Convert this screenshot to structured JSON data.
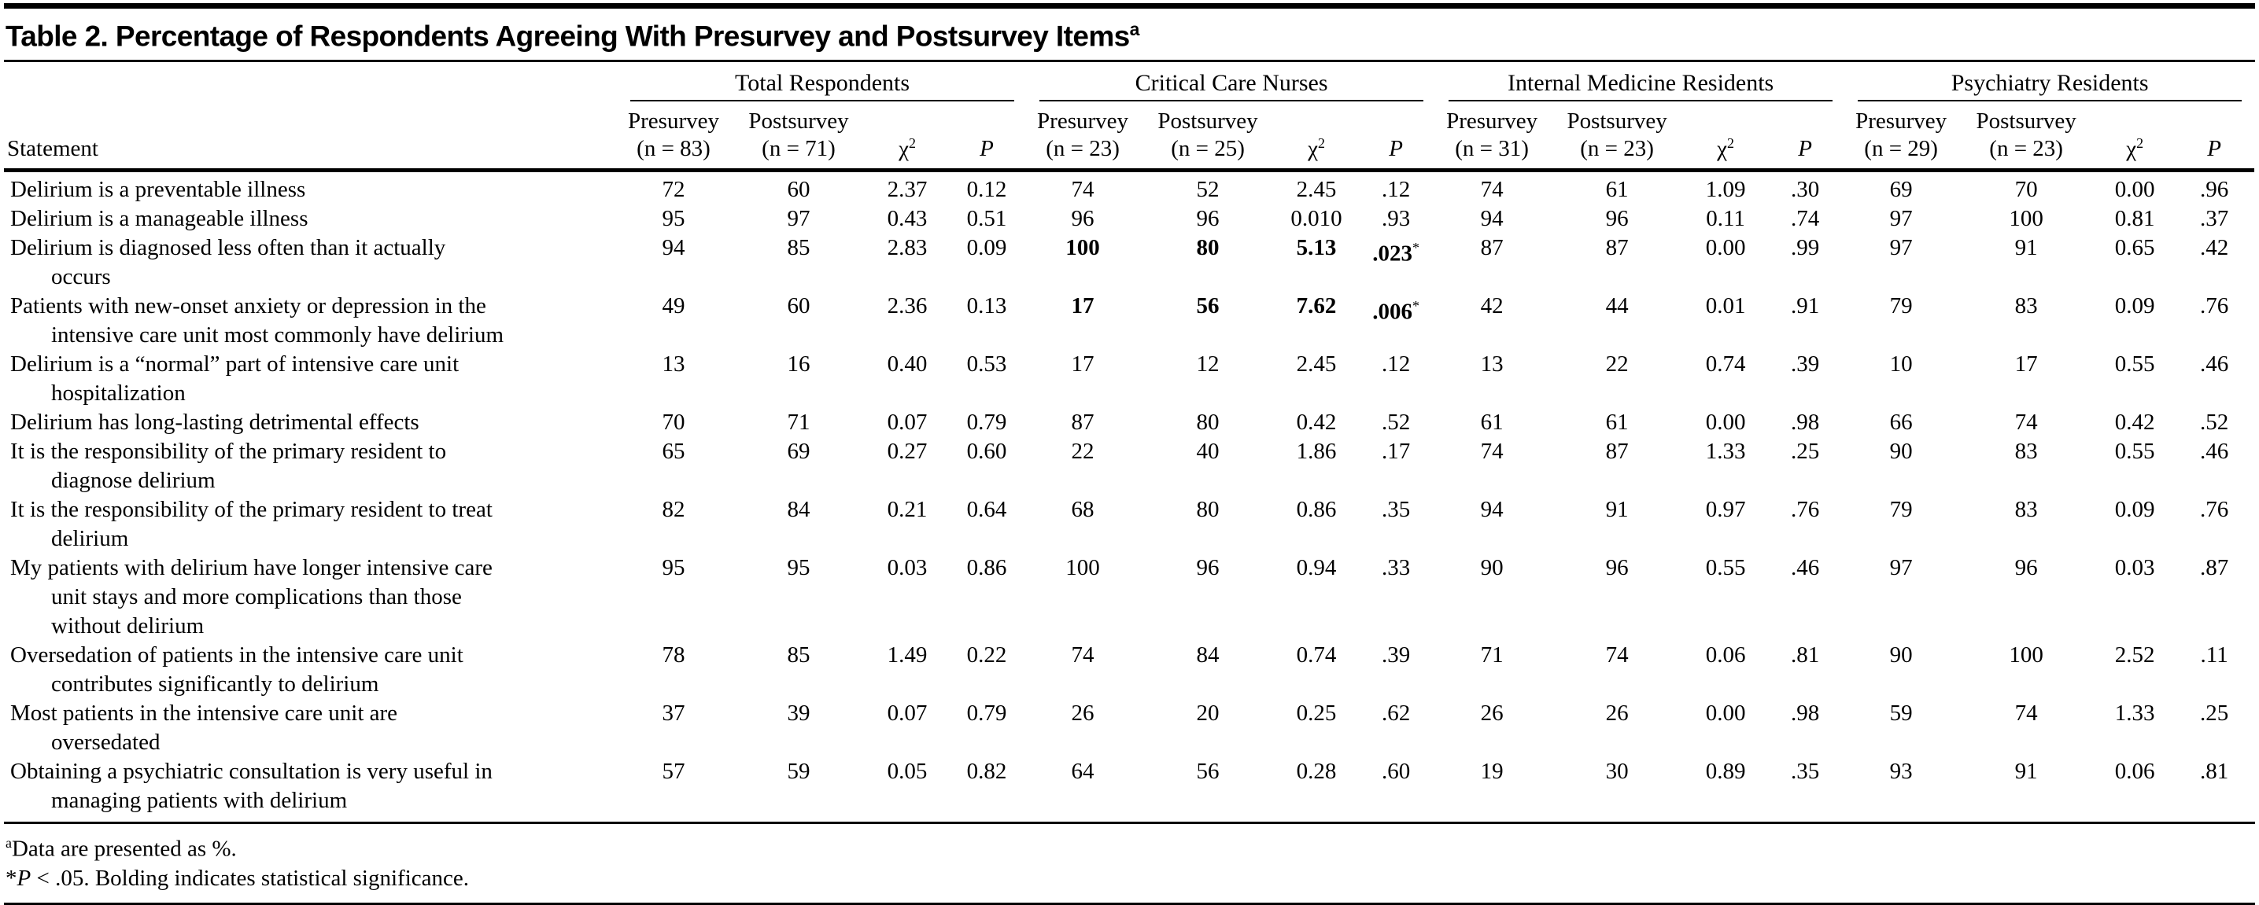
{
  "title": {
    "text": "Table 2. Percentage of Respondents Agreeing With Presurvey and Postsurvey Items",
    "superscript": "a"
  },
  "header": {
    "statement": "Statement",
    "chi": "χ",
    "chi_sup": "2",
    "p": "P",
    "groups": [
      {
        "label": "Total Respondents",
        "presurvey": "Presurvey",
        "presurvey_n": "(n = 83)",
        "postsurvey": "Postsurvey",
        "postsurvey_n": "(n = 71)"
      },
      {
        "label": "Critical Care Nurses",
        "presurvey": "Presurvey",
        "presurvey_n": "(n = 23)",
        "postsurvey": "Postsurvey",
        "postsurvey_n": "(n = 25)"
      },
      {
        "label": "Internal Medicine Residents",
        "presurvey": "Presurvey",
        "presurvey_n": "(n = 31)",
        "postsurvey": "Postsurvey",
        "postsurvey_n": "(n = 23)"
      },
      {
        "label": "Psychiatry Residents",
        "presurvey": "Presurvey",
        "presurvey_n": "(n = 29)",
        "postsurvey": "Postsurvey",
        "postsurvey_n": "(n = 23)"
      }
    ]
  },
  "rows": [
    {
      "statement": "Delirium is a preventable illness",
      "cells": [
        "72",
        "60",
        "2.37",
        "0.12",
        "74",
        "52",
        "2.45",
        ".12",
        "74",
        "61",
        "1.09",
        ".30",
        "69",
        "70",
        "0.00",
        ".96"
      ],
      "bold_cells": []
    },
    {
      "statement": "Delirium is a manageable illness",
      "cells": [
        "95",
        "97",
        "0.43",
        "0.51",
        "96",
        "96",
        "0.010",
        ".93",
        "94",
        "96",
        "0.11",
        ".74",
        "97",
        "100",
        "0.81",
        ".37"
      ],
      "bold_cells": []
    },
    {
      "statement": "Delirium is diagnosed less often than it actually\noccurs",
      "cells": [
        "94",
        "85",
        "2.83",
        "0.09",
        "100",
        "80",
        "5.13",
        ".023*",
        "87",
        "87",
        "0.00",
        ".99",
        "97",
        "91",
        "0.65",
        ".42"
      ],
      "bold_cells": [
        4,
        5,
        6,
        7
      ]
    },
    {
      "statement": "Patients with new-onset anxiety or depression in the\nintensive care unit most commonly have delirium",
      "cells": [
        "49",
        "60",
        "2.36",
        "0.13",
        "17",
        "56",
        "7.62",
        ".006*",
        "42",
        "44",
        "0.01",
        ".91",
        "79",
        "83",
        "0.09",
        ".76"
      ],
      "bold_cells": [
        4,
        5,
        6,
        7
      ]
    },
    {
      "statement": "Delirium is a “normal” part of intensive care unit\nhospitalization",
      "cells": [
        "13",
        "16",
        "0.40",
        "0.53",
        "17",
        "12",
        "2.45",
        ".12",
        "13",
        "22",
        "0.74",
        ".39",
        "10",
        "17",
        "0.55",
        ".46"
      ],
      "bold_cells": []
    },
    {
      "statement": "Delirium has long-lasting detrimental effects",
      "cells": [
        "70",
        "71",
        "0.07",
        "0.79",
        "87",
        "80",
        "0.42",
        ".52",
        "61",
        "61",
        "0.00",
        ".98",
        "66",
        "74",
        "0.42",
        ".52"
      ],
      "bold_cells": []
    },
    {
      "statement": "It is the responsibility of the primary resident to\ndiagnose delirium",
      "cells": [
        "65",
        "69",
        "0.27",
        "0.60",
        "22",
        "40",
        "1.86",
        ".17",
        "74",
        "87",
        "1.33",
        ".25",
        "90",
        "83",
        "0.55",
        ".46"
      ],
      "bold_cells": []
    },
    {
      "statement": "It is the responsibility of the primary resident to treat\ndelirium",
      "cells": [
        "82",
        "84",
        "0.21",
        "0.64",
        "68",
        "80",
        "0.86",
        ".35",
        "94",
        "91",
        "0.97",
        ".76",
        "79",
        "83",
        "0.09",
        ".76"
      ],
      "bold_cells": []
    },
    {
      "statement": "My patients with delirium have longer intensive care\nunit stays and more complications than those\nwithout delirium",
      "cells": [
        "95",
        "95",
        "0.03",
        "0.86",
        "100",
        "96",
        "0.94",
        ".33",
        "90",
        "96",
        "0.55",
        ".46",
        "97",
        "96",
        "0.03",
        ".87"
      ],
      "bold_cells": []
    },
    {
      "statement": "Oversedation of patients in the intensive care unit\ncontributes significantly to delirium",
      "cells": [
        "78",
        "85",
        "1.49",
        "0.22",
        "74",
        "84",
        "0.74",
        ".39",
        "71",
        "74",
        "0.06",
        ".81",
        "90",
        "100",
        "2.52",
        ".11"
      ],
      "bold_cells": []
    },
    {
      "statement": "Most patients in the intensive care unit are\noversedated",
      "cells": [
        "37",
        "39",
        "0.07",
        "0.79",
        "26",
        "20",
        "0.25",
        ".62",
        "26",
        "26",
        "0.00",
        ".98",
        "59",
        "74",
        "1.33",
        ".25"
      ],
      "bold_cells": []
    },
    {
      "statement": "Obtaining a psychiatric consultation is very useful in\nmanaging patients with delirium",
      "cells": [
        "57",
        "59",
        "0.05",
        "0.82",
        "64",
        "56",
        "0.28",
        ".60",
        "19",
        "30",
        "0.89",
        ".35",
        "93",
        "91",
        "0.06",
        ".81"
      ],
      "bold_cells": []
    }
  ],
  "footnotes": [
    [
      {
        "t": "a",
        "style": "sup"
      },
      {
        "t": "Data are presented as %.",
        "style": ""
      }
    ],
    [
      {
        "t": "*",
        "style": ""
      },
      {
        "t": "P",
        "style": "i"
      },
      {
        "t": " < .05. Bolding indicates statistical significance.",
        "style": ""
      }
    ]
  ]
}
